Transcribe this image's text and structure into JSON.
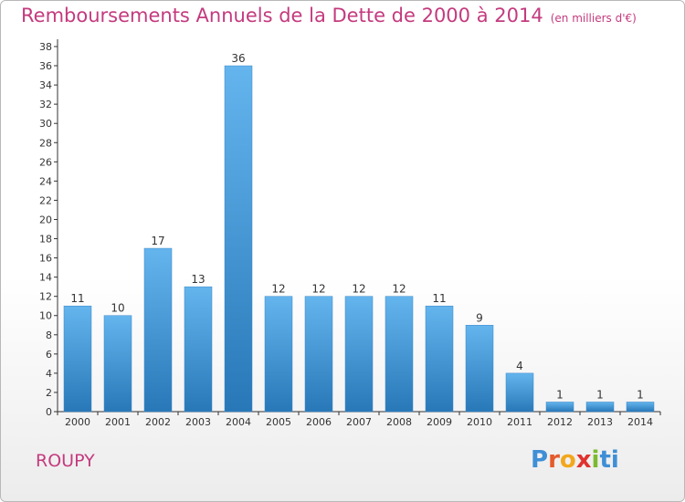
{
  "title": "Remboursements Annuels de la Dette de 2000 à 2014",
  "subtitle": "(en milliers d'€)",
  "commune": "ROUPY",
  "logo": {
    "text": "Proxiti",
    "letter_colors": [
      "#3f8fd6",
      "#e55a2b",
      "#f2a81d",
      "#e0322e",
      "#7cba2f",
      "#3f8fd6",
      "#3f8fd6"
    ]
  },
  "colors": {
    "title": "#c43a7e",
    "bar_light": "#64b5ee",
    "bar_dark": "#2878b8"
  },
  "chart_data": {
    "type": "bar",
    "title": "Remboursements Annuels de la Dette de 2000 à 2014",
    "subtitle": "(en milliers d'€)",
    "categories": [
      "2000",
      "2001",
      "2002",
      "2003",
      "2004",
      "2005",
      "2006",
      "2007",
      "2008",
      "2009",
      "2010",
      "2011",
      "2012",
      "2013",
      "2014"
    ],
    "values": [
      11,
      10,
      17,
      13,
      36,
      12,
      12,
      12,
      12,
      11,
      9,
      4,
      1,
      1,
      1
    ],
    "data_labels": [
      "11",
      "10",
      "17",
      "13",
      "36",
      "12",
      "12",
      "12",
      "12",
      "11",
      "9",
      "4",
      "1",
      "1",
      "1"
    ],
    "ylim": [
      0,
      38
    ],
    "yticks": [
      0,
      2,
      4,
      6,
      8,
      10,
      12,
      14,
      16,
      18,
      20,
      22,
      24,
      26,
      28,
      30,
      32,
      34,
      36,
      38
    ],
    "grid": false
  }
}
